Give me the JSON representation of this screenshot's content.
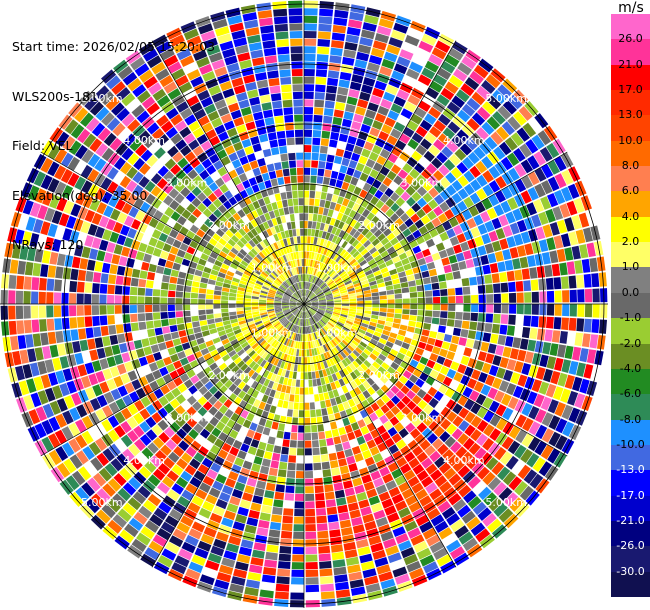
{
  "info": {
    "start_time": "Start time: 2026/02/05 15:20:03",
    "site": "WLS200s-181",
    "field": "Field: VEL",
    "elevation": "Elevation(deg): 35.00",
    "nrays": "NRays: 120"
  },
  "colorbar": {
    "unit": "m/s",
    "levels": [
      {
        "label": "26.0",
        "color": "#ff3399"
      },
      {
        "label": "21.0",
        "color": "#ff0000"
      },
      {
        "label": "17.0",
        "color": "#ff2a00"
      },
      {
        "label": "13.0",
        "color": "#ff4400"
      },
      {
        "label": "10.0",
        "color": "#ff6a00"
      },
      {
        "label": "8.0",
        "color": "#ff7f50"
      },
      {
        "label": "6.0",
        "color": "#ffa500"
      },
      {
        "label": "4.0",
        "color": "#ffff00"
      },
      {
        "label": "2.0",
        "color": "#ffff66"
      },
      {
        "label": "1.0",
        "color": "#808080"
      },
      {
        "label": "0.0",
        "color": "#696969"
      },
      {
        "label": "-1.0",
        "color": "#9acd32"
      },
      {
        "label": "-2.0",
        "color": "#6b8e23"
      },
      {
        "label": "-4.0",
        "color": "#228b22"
      },
      {
        "label": "-6.0",
        "color": "#2e8b57"
      },
      {
        "label": "-8.0",
        "color": "#1e90ff"
      },
      {
        "label": "-10.0",
        "color": "#4169e1"
      },
      {
        "label": "-13.0",
        "color": "#0000ff"
      },
      {
        "label": "-17.0",
        "color": "#0000cd"
      },
      {
        "label": "-21.0",
        "color": "#000080"
      },
      {
        "label": "-26.0",
        "color": "#191970"
      },
      {
        "label": "-30.0",
        "color": "#101050"
      }
    ],
    "top_color": "#ff66cc"
  },
  "rings": [
    {
      "label": "1.00km"
    },
    {
      "label": "2.00km"
    },
    {
      "label": "3.00km"
    },
    {
      "label": "4.00km"
    },
    {
      "label": "5.00km"
    }
  ]
}
